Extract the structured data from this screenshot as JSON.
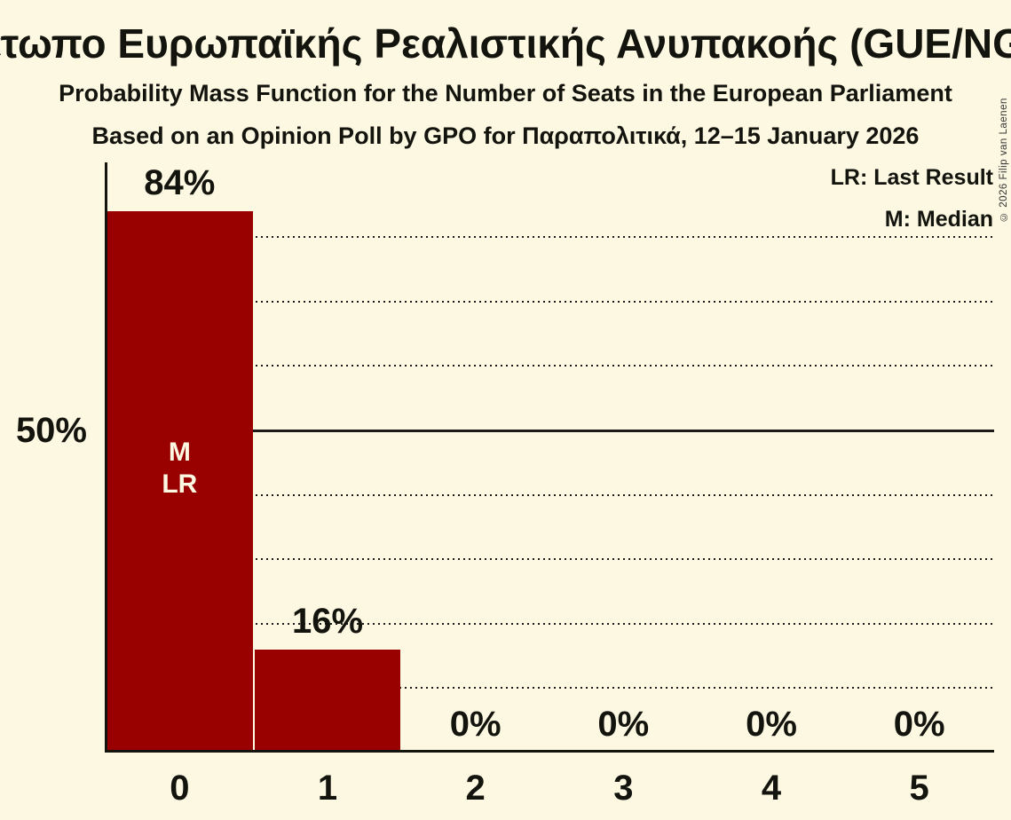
{
  "copyright": "© 2026 Filip van Laenen",
  "chart_data": {
    "type": "bar",
    "title": "Μέτωπο Ευρωπαϊκής Ρεαλιστικής Ανυπακοής (GUE/NGL)",
    "subtitle": "Probability Mass Function for the Number of Seats in the European Parliament",
    "subtitle2": "Based on an Opinion Poll by GPO for Παραπολιτικά, 12–15 January 2026",
    "categories": [
      "0",
      "1",
      "2",
      "3",
      "4",
      "5"
    ],
    "values": [
      84,
      16,
      0,
      0,
      0,
      0
    ],
    "value_labels": [
      "84%",
      "16%",
      "0%",
      "0%",
      "0%",
      "0%"
    ],
    "bar_annotations": [
      [
        "M",
        "LR"
      ],
      [],
      [],
      [],
      [],
      []
    ],
    "legend": [
      "LR: Last Result",
      "M: Median"
    ],
    "legend_position": "top-right",
    "xlabel": "",
    "ylabel": "",
    "ylim": [
      0,
      91.6
    ],
    "y_ticks": [
      {
        "pct": 50,
        "label": "50%"
      }
    ],
    "gridlines_dotted_pct": [
      10,
      20,
      30,
      40,
      60,
      70,
      80
    ],
    "gridline_solid_pct": 50,
    "grid": true,
    "colors": {
      "bar": "#990000",
      "background": "#FDF8E1",
      "text": "#14140f",
      "bar_annotation_text": "#FDF8E1"
    }
  }
}
